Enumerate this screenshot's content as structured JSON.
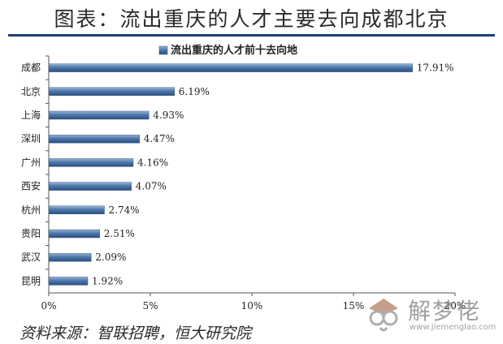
{
  "page": {
    "title": "图表：流出重庆的人才主要去向成都北京",
    "source": "资料来源：智联招聘，恒大研究院"
  },
  "watermark": {
    "name": "解梦佬",
    "url": "www.jiemenglao.com",
    "icon": "owl-logo-icon"
  },
  "chart_data": {
    "type": "bar",
    "orientation": "horizontal",
    "categories": [
      "成都",
      "北京",
      "上海",
      "深圳",
      "广州",
      "西安",
      "杭州",
      "贵阳",
      "武汉",
      "昆明"
    ],
    "values": [
      17.91,
      6.19,
      4.93,
      4.47,
      4.16,
      4.07,
      2.74,
      2.51,
      2.09,
      1.92
    ],
    "value_labels": [
      "17.91%",
      "6.19%",
      "4.93%",
      "4.47%",
      "4.16%",
      "4.07%",
      "2.74%",
      "2.51%",
      "2.09%",
      "1.92%"
    ],
    "series": [
      {
        "name": "流出重庆的人才前十去向地"
      }
    ],
    "xlim": [
      0,
      20
    ],
    "ticks": [
      0,
      5,
      10,
      15,
      20
    ],
    "tick_labels": [
      "0%",
      "5%",
      "10%",
      "15%",
      "20%"
    ],
    "legend": "top-center",
    "grid": false,
    "bar_color": "#4d78ac"
  }
}
